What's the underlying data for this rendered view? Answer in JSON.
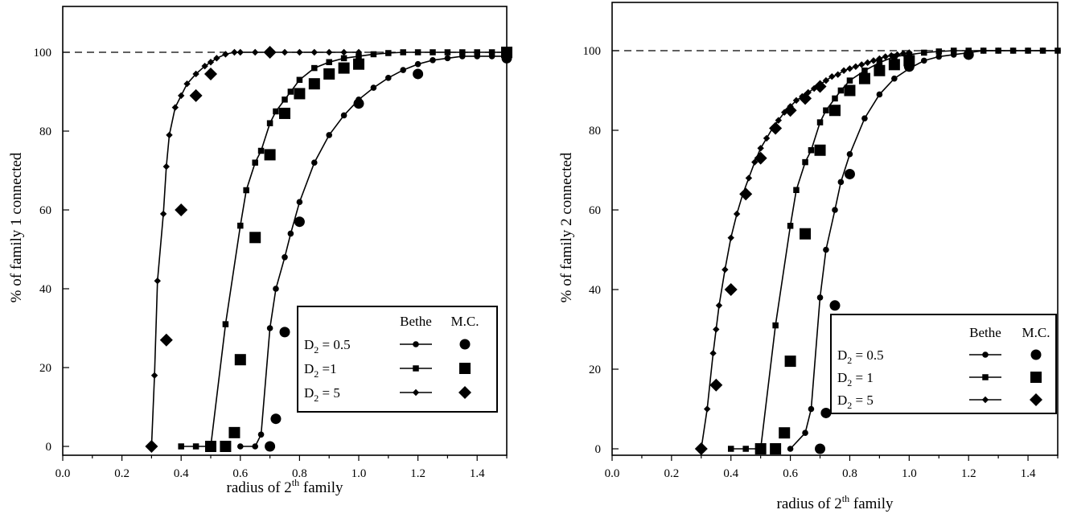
{
  "chart_data": [
    {
      "type": "line",
      "xlabel": "radius of 2th family",
      "ylabel": "% of family 1 connected",
      "xlim": [
        0.0,
        1.5
      ],
      "ylim": [
        0,
        100
      ],
      "xticks": [
        "0.0",
        "0.2",
        "0.4",
        "0.6",
        "0.8",
        "1.0",
        "1.2",
        "1.4"
      ],
      "yticks": [
        "0",
        "20",
        "40",
        "60",
        "80",
        "100"
      ],
      "reference_line": 100,
      "legend": {
        "position": "lower-right",
        "header_bethe": "Bethe",
        "header_mc": "M.C.",
        "rows": [
          {
            "prefix": "D",
            "sub": "2",
            "suffix": " = 0.5"
          },
          {
            "prefix": "D",
            "sub": "2",
            "suffix": " =1"
          },
          {
            "prefix": "D",
            "sub": "2",
            "suffix": " = 5"
          }
        ]
      },
      "series": [
        {
          "name": "D2 = 0.5 Bethe",
          "marker": "circle-small",
          "x": [
            0.6,
            0.65,
            0.67,
            0.7,
            0.72,
            0.75,
            0.77,
            0.8,
            0.85,
            0.9,
            0.95,
            1.0,
            1.05,
            1.1,
            1.15,
            1.2,
            1.25,
            1.3,
            1.35,
            1.4,
            1.45,
            1.5
          ],
          "y": [
            0,
            0,
            3,
            30,
            40,
            48,
            54,
            62,
            72,
            79,
            84,
            88,
            91,
            93.5,
            95.5,
            97,
            98,
            98.5,
            99,
            99,
            99,
            99
          ]
        },
        {
          "name": "D2 = 1 Bethe",
          "marker": "square-small",
          "x": [
            0.4,
            0.45,
            0.5,
            0.55,
            0.6,
            0.62,
            0.65,
            0.67,
            0.7,
            0.72,
            0.75,
            0.77,
            0.8,
            0.85,
            0.9,
            0.95,
            1.0,
            1.05,
            1.1,
            1.15,
            1.2,
            1.25,
            1.3,
            1.35,
            1.4,
            1.45,
            1.5
          ],
          "y": [
            0,
            0,
            0,
            31,
            56,
            65,
            72,
            75,
            82,
            85,
            88,
            90,
            93,
            96,
            97.5,
            98.5,
            99,
            99.5,
            99.8,
            100,
            100,
            100,
            100,
            100,
            100,
            100,
            100
          ]
        },
        {
          "name": "D2 = 5 Bethe",
          "marker": "diamond-small",
          "x": [
            0.3,
            0.31,
            0.32,
            0.34,
            0.35,
            0.36,
            0.38,
            0.4,
            0.42,
            0.45,
            0.48,
            0.5,
            0.52,
            0.55,
            0.58,
            0.6,
            0.65,
            0.7,
            0.75,
            0.8,
            0.85,
            0.9,
            0.95,
            1.0
          ],
          "y": [
            0,
            18,
            42,
            59,
            71,
            79,
            86,
            89,
            92,
            94.5,
            96.5,
            97.5,
            98.5,
            99.5,
            100,
            100,
            100,
            100,
            100,
            100,
            100,
            100,
            100,
            100
          ]
        },
        {
          "name": "D2 = 0.5 M.C.",
          "marker": "circle-large",
          "x": [
            0.7,
            0.72,
            0.75,
            0.8,
            1.0,
            1.2,
            1.5
          ],
          "y": [
            0,
            7,
            29,
            57,
            87,
            94.5,
            98.5
          ]
        },
        {
          "name": "D2 = 1 M.C.",
          "marker": "square-large",
          "x": [
            0.5,
            0.55,
            0.58,
            0.6,
            0.65,
            0.7,
            0.75,
            0.8,
            0.85,
            0.9,
            0.95,
            1.0,
            1.5
          ],
          "y": [
            0,
            0,
            3.5,
            22,
            53,
            74,
            84.5,
            89.5,
            92,
            94.5,
            96,
            97,
            100
          ]
        },
        {
          "name": "D2 = 5 M.C.",
          "marker": "diamond-large",
          "x": [
            0.3,
            0.35,
            0.4,
            0.45,
            0.5,
            0.7
          ],
          "y": [
            0,
            27,
            60,
            89,
            94.5,
            100
          ]
        }
      ]
    },
    {
      "type": "line",
      "xlabel": "radius of 2th family",
      "ylabel": "% of family 2 connected",
      "xlim": [
        0.0,
        1.5
      ],
      "ylim": [
        0,
        100
      ],
      "xticks": [
        "0.0",
        "0.2",
        "0.4",
        "0.6",
        "0.8",
        "1.0",
        "1.2",
        "1.4"
      ],
      "yticks": [
        "0",
        "20",
        "40",
        "60",
        "80",
        "100"
      ],
      "reference_line": 100,
      "legend": {
        "position": "lower-right",
        "header_bethe": "Bethe",
        "header_mc": "M.C.",
        "rows": [
          {
            "prefix": "D",
            "sub": "2",
            "suffix": " = 0.5"
          },
          {
            "prefix": "D",
            "sub": "2",
            "suffix": " = 1"
          },
          {
            "prefix": "D",
            "sub": "2",
            "suffix": " = 5"
          }
        ]
      },
      "series": [
        {
          "name": "D2 = 0.5 Bethe",
          "marker": "circle-small",
          "x": [
            0.6,
            0.65,
            0.67,
            0.7,
            0.72,
            0.75,
            0.77,
            0.8,
            0.85,
            0.9,
            0.95,
            1.0,
            1.05,
            1.1,
            1.15,
            1.2,
            1.25,
            1.3,
            1.35,
            1.4,
            1.45,
            1.5
          ],
          "y": [
            0,
            4,
            10,
            38,
            50,
            60,
            67,
            74,
            83,
            89,
            93,
            95.5,
            97.5,
            98.5,
            99,
            99.5,
            100,
            100,
            100,
            100,
            100,
            100
          ]
        },
        {
          "name": "D2 = 1 Bethe",
          "marker": "square-small",
          "x": [
            0.4,
            0.45,
            0.5,
            0.55,
            0.6,
            0.62,
            0.65,
            0.67,
            0.7,
            0.72,
            0.75,
            0.77,
            0.8,
            0.85,
            0.9,
            0.95,
            1.0,
            1.05,
            1.1,
            1.15,
            1.2,
            1.25,
            1.3,
            1.35,
            1.4,
            1.45,
            1.5
          ],
          "y": [
            0,
            0,
            0,
            31,
            56,
            65,
            72,
            75,
            82,
            85,
            88,
            90,
            92.5,
            95,
            97,
            98.5,
            99,
            99.5,
            99.8,
            100,
            100,
            100,
            100,
            100,
            100,
            100,
            100
          ]
        },
        {
          "name": "D2 = 5 Bethe",
          "marker": "diamond-small",
          "x": [
            0.3,
            0.32,
            0.34,
            0.35,
            0.36,
            0.38,
            0.4,
            0.42,
            0.44,
            0.46,
            0.48,
            0.5,
            0.52,
            0.54,
            0.56,
            0.58,
            0.6,
            0.62,
            0.64,
            0.66,
            0.68,
            0.7,
            0.72,
            0.74,
            0.76,
            0.78,
            0.8,
            0.82,
            0.84,
            0.86,
            0.88,
            0.9,
            0.92,
            0.94,
            0.96,
            0.98,
            1.0
          ],
          "y": [
            0,
            10,
            24,
            30,
            36,
            45,
            53,
            59,
            64,
            68,
            72,
            75.5,
            78,
            80.5,
            82.5,
            84.5,
            86,
            87.5,
            88.5,
            89.5,
            90.5,
            91.5,
            92.5,
            93.5,
            94,
            95,
            95.5,
            96,
            96.5,
            97,
            97.5,
            98,
            98.5,
            98.8,
            99,
            99.3,
            99.5
          ]
        },
        {
          "name": "D2 = 0.5 M.C.",
          "marker": "circle-large",
          "x": [
            0.7,
            0.72,
            0.75,
            0.8,
            1.0,
            1.2
          ],
          "y": [
            0,
            9,
            36,
            69,
            96,
            99
          ]
        },
        {
          "name": "D2 = 1 M.C.",
          "marker": "square-large",
          "x": [
            0.5,
            0.55,
            0.58,
            0.6,
            0.65,
            0.7,
            0.75,
            0.8,
            0.85,
            0.9,
            0.95,
            1.0
          ],
          "y": [
            0,
            0,
            4,
            22,
            54,
            75,
            85,
            90,
            93,
            95,
            96.5,
            97.5
          ]
        },
        {
          "name": "D2 = 5 M.C.",
          "marker": "diamond-large",
          "x": [
            0.3,
            0.35,
            0.4,
            0.45,
            0.5,
            0.55,
            0.6,
            0.65,
            0.7
          ],
          "y": [
            0,
            16,
            40,
            64,
            73,
            80.5,
            85,
            88,
            91
          ]
        }
      ]
    }
  ]
}
